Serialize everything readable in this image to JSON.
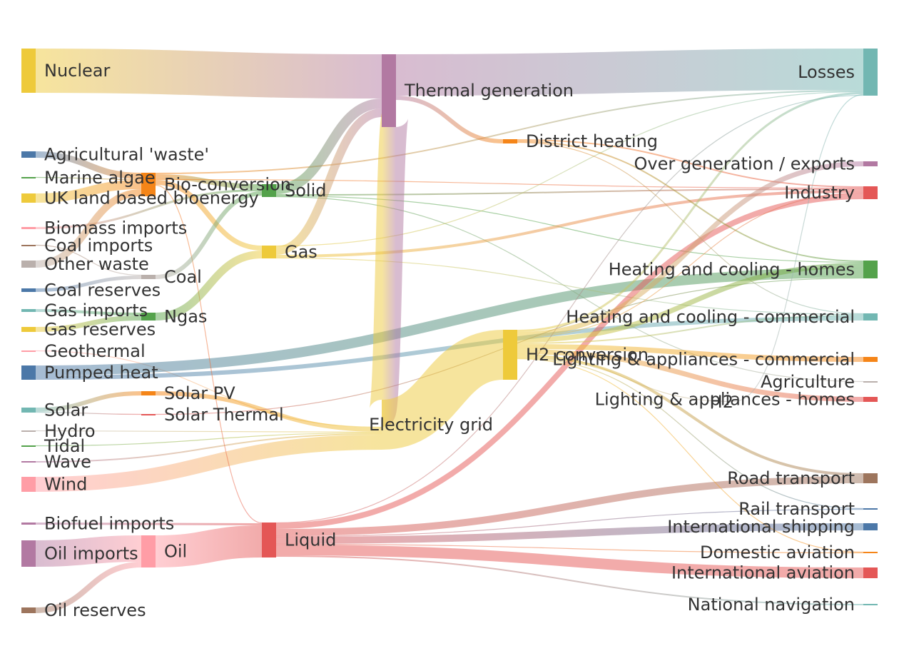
{
  "chart_data": {
    "type": "sankey",
    "colors": {
      "yellow": "#eeca3b",
      "blue": "#4c78a8",
      "orange": "#f58518",
      "red": "#e45756",
      "teal": "#72b7b2",
      "green": "#54a24b",
      "purple": "#b279a2",
      "pink": "#ff9da6",
      "brown": "#9d755d",
      "grey": "#bab0ac"
    },
    "nodes": [
      {
        "id": "nuclear",
        "label": "Nuclear",
        "color": "#eeca3b"
      },
      {
        "id": "agri_waste",
        "label": "Agricultural 'waste'",
        "color": "#4c78a8"
      },
      {
        "id": "marine_algae",
        "label": "Marine algae",
        "color": "#54a24b"
      },
      {
        "id": "uk_bio",
        "label": "UK land based bioenergy",
        "color": "#eeca3b"
      },
      {
        "id": "biomass_imports",
        "label": "Biomass imports",
        "color": "#ff9da6"
      },
      {
        "id": "coal_imports",
        "label": "Coal imports",
        "color": "#9d755d"
      },
      {
        "id": "other_waste",
        "label": "Other waste",
        "color": "#bab0ac"
      },
      {
        "id": "coal_reserves",
        "label": "Coal reserves",
        "color": "#4c78a8"
      },
      {
        "id": "gas_imports",
        "label": "Gas imports",
        "color": "#72b7b2"
      },
      {
        "id": "gas_reserves",
        "label": "Gas reserves",
        "color": "#eeca3b"
      },
      {
        "id": "geothermal",
        "label": "Geothermal",
        "color": "#ff9da6"
      },
      {
        "id": "pumped_heat",
        "label": "Pumped heat",
        "color": "#4c78a8"
      },
      {
        "id": "solar",
        "label": "Solar",
        "color": "#72b7b2"
      },
      {
        "id": "hydro",
        "label": "Hydro",
        "color": "#bab0ac"
      },
      {
        "id": "tidal",
        "label": "Tidal",
        "color": "#54a24b"
      },
      {
        "id": "wave",
        "label": "Wave",
        "color": "#b279a2"
      },
      {
        "id": "wind",
        "label": "Wind",
        "color": "#ff9da6"
      },
      {
        "id": "biofuel_imports",
        "label": "Biofuel imports",
        "color": "#b279a2"
      },
      {
        "id": "oil_imports",
        "label": "Oil imports",
        "color": "#b279a2"
      },
      {
        "id": "oil_reserves",
        "label": "Oil reserves",
        "color": "#9d755d"
      },
      {
        "id": "bio_conversion",
        "label": "Bio-conversion",
        "color": "#f58518"
      },
      {
        "id": "coal",
        "label": "Coal",
        "color": "#bab0ac"
      },
      {
        "id": "ngas",
        "label": "Ngas",
        "color": "#54a24b"
      },
      {
        "id": "solar_pv",
        "label": "Solar PV",
        "color": "#f58518"
      },
      {
        "id": "solar_thermal",
        "label": "Solar Thermal",
        "color": "#e45756"
      },
      {
        "id": "oil",
        "label": "Oil",
        "color": "#ff9da6"
      },
      {
        "id": "solid",
        "label": "Solid",
        "color": "#54a24b"
      },
      {
        "id": "gas",
        "label": "Gas",
        "color": "#eeca3b"
      },
      {
        "id": "liquid",
        "label": "Liquid",
        "color": "#e45756"
      },
      {
        "id": "thermal_gen",
        "label": "Thermal generation",
        "color": "#b279a2"
      },
      {
        "id": "district_heating",
        "label": "District heating",
        "color": "#f58518"
      },
      {
        "id": "elec_grid",
        "label": "Electricity grid",
        "color": "#eeca3b"
      },
      {
        "id": "h2_conversion",
        "label": "H2 conversion",
        "color": "#eeca3b"
      },
      {
        "id": "h2",
        "label": "H2",
        "color": "#bab0ac"
      },
      {
        "id": "losses",
        "label": "Losses",
        "color": "#72b7b2"
      },
      {
        "id": "over_gen",
        "label": "Over generation / exports",
        "color": "#b279a2"
      },
      {
        "id": "industry",
        "label": "Industry",
        "color": "#e45756"
      },
      {
        "id": "hc_homes",
        "label": "Heating and cooling - homes",
        "color": "#54a24b"
      },
      {
        "id": "hc_commercial",
        "label": "Heating and cooling - commercial",
        "color": "#72b7b2"
      },
      {
        "id": "la_commercial",
        "label": "Lighting & appliances - commercial",
        "color": "#f58518"
      },
      {
        "id": "agriculture",
        "label": "Agriculture",
        "color": "#bab0ac"
      },
      {
        "id": "la_homes",
        "label": "Lighting & appliances - homes",
        "color": "#e45756"
      },
      {
        "id": "road",
        "label": "Road transport",
        "color": "#9d755d"
      },
      {
        "id": "rail",
        "label": "Rail transport",
        "color": "#4c78a8"
      },
      {
        "id": "intl_shipping",
        "label": "International shipping",
        "color": "#4c78a8"
      },
      {
        "id": "dom_aviation",
        "label": "Domestic aviation",
        "color": "#f58518"
      },
      {
        "id": "intl_aviation",
        "label": "International aviation",
        "color": "#e45756"
      },
      {
        "id": "national_nav",
        "label": "National navigation",
        "color": "#72b7b2"
      }
    ],
    "links": [
      {
        "source": "nuclear",
        "target": "thermal_gen",
        "value": 62
      },
      {
        "source": "agri_waste",
        "target": "bio_conversion",
        "value": 9
      },
      {
        "source": "marine_algae",
        "target": "bio_conversion",
        "value": 1
      },
      {
        "source": "uk_bio",
        "target": "bio_conversion",
        "value": 13
      },
      {
        "source": "biomass_imports",
        "target": "solid",
        "value": 3
      },
      {
        "source": "coal_imports",
        "target": "coal",
        "value": 1
      },
      {
        "source": "other_waste",
        "target": "bio_conversion",
        "value": 10
      },
      {
        "source": "coal_reserves",
        "target": "coal",
        "value": 5
      },
      {
        "source": "gas_imports",
        "target": "ngas",
        "value": 4
      },
      {
        "source": "gas_reserves",
        "target": "ngas",
        "value": 7
      },
      {
        "source": "geothermal",
        "target": "elec_grid",
        "value": 1
      },
      {
        "source": "pumped_heat",
        "target": "hc_homes",
        "value": 14
      },
      {
        "source": "pumped_heat",
        "target": "hc_commercial",
        "value": 6
      },
      {
        "source": "solar",
        "target": "solar_pv",
        "value": 6
      },
      {
        "source": "solar",
        "target": "solar_thermal",
        "value": 1
      },
      {
        "source": "hydro",
        "target": "elec_grid",
        "value": 1
      },
      {
        "source": "tidal",
        "target": "elec_grid",
        "value": 1
      },
      {
        "source": "wave",
        "target": "elec_grid",
        "value": 2
      },
      {
        "source": "wind",
        "target": "elec_grid",
        "value": 21
      },
      {
        "source": "biofuel_imports",
        "target": "liquid",
        "value": 3
      },
      {
        "source": "oil_imports",
        "target": "oil",
        "value": 37
      },
      {
        "source": "oil_reserves",
        "target": "oil",
        "value": 8
      },
      {
        "source": "bio_conversion",
        "target": "solid",
        "value": 7
      },
      {
        "source": "bio_conversion",
        "target": "gas",
        "value": 7
      },
      {
        "source": "bio_conversion",
        "target": "liquid",
        "value": 1
      },
      {
        "source": "bio_conversion",
        "target": "losses",
        "value": 2
      },
      {
        "source": "bio_conversion",
        "target": "industry",
        "value": 1
      },
      {
        "source": "coal",
        "target": "solid",
        "value": 6
      },
      {
        "source": "ngas",
        "target": "gas",
        "value": 11
      },
      {
        "source": "solar_pv",
        "target": "elec_grid",
        "value": 6
      },
      {
        "source": "solar_thermal",
        "target": "hc_homes",
        "value": 1
      },
      {
        "source": "oil",
        "target": "liquid",
        "value": 45
      },
      {
        "source": "solid",
        "target": "thermal_gen",
        "value": 14
      },
      {
        "source": "solid",
        "target": "industry",
        "value": 2
      },
      {
        "source": "solid",
        "target": "agriculture",
        "value": 1
      },
      {
        "source": "solid",
        "target": "hc_homes",
        "value": 1
      },
      {
        "source": "gas",
        "target": "thermal_gen",
        "value": 12
      },
      {
        "source": "gas",
        "target": "industry",
        "value": 4
      },
      {
        "source": "gas",
        "target": "hc_commercial",
        "value": 1
      },
      {
        "source": "gas",
        "target": "losses",
        "value": 1
      },
      {
        "source": "liquid",
        "target": "industry",
        "value": 8
      },
      {
        "source": "liquid",
        "target": "road",
        "value": 10
      },
      {
        "source": "liquid",
        "target": "intl_shipping",
        "value": 10
      },
      {
        "source": "liquid",
        "target": "rail",
        "value": 1
      },
      {
        "source": "liquid",
        "target": "dom_aviation",
        "value": 1
      },
      {
        "source": "liquid",
        "target": "intl_aviation",
        "value": 15
      },
      {
        "source": "liquid",
        "target": "national_nav",
        "value": 2
      },
      {
        "source": "liquid",
        "target": "losses",
        "value": 1
      },
      {
        "source": "thermal_gen",
        "target": "losses",
        "value": 58
      },
      {
        "source": "thermal_gen",
        "target": "district_heating",
        "value": 6
      },
      {
        "source": "thermal_gen",
        "target": "elec_grid",
        "value": 38
      },
      {
        "source": "district_heating",
        "target": "industry",
        "value": 2
      },
      {
        "source": "district_heating",
        "target": "hc_homes",
        "value": 2
      },
      {
        "source": "district_heating",
        "target": "hc_commercial",
        "value": 1
      },
      {
        "source": "h2_conversion",
        "target": "losses",
        "value": 3
      },
      {
        "source": "h2_conversion",
        "target": "over_gen",
        "value": 7
      },
      {
        "source": "h2_conversion",
        "target": "industry",
        "value": 1
      },
      {
        "source": "h2_conversion",
        "target": "hc_homes",
        "value": 7
      },
      {
        "source": "h2_conversion",
        "target": "hc_commercial",
        "value": 2
      },
      {
        "source": "h2_conversion",
        "target": "la_commercial",
        "value": 7
      },
      {
        "source": "h2_conversion",
        "target": "la_homes",
        "value": 7
      },
      {
        "source": "h2_conversion",
        "target": "h2",
        "value": 1
      },
      {
        "source": "h2_conversion",
        "target": "road",
        "value": 4
      },
      {
        "source": "h2_conversion",
        "target": "rail",
        "value": 1
      },
      {
        "source": "h2_conversion",
        "target": "dom_aviation",
        "value": 1
      },
      {
        "source": "h2",
        "target": "losses",
        "value": 1
      }
    ]
  }
}
